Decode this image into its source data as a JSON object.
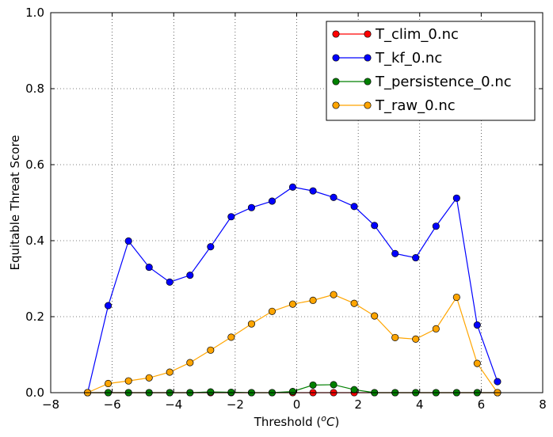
{
  "chart_data": {
    "type": "line",
    "xlabel_main": "Threshold (",
    "xlabel_unit": "o",
    "xlabel_c": "C",
    "xlabel_end": ")",
    "ylabel": "Equitable Threat Score",
    "xlim": [
      -8,
      8
    ],
    "ylim": [
      0,
      1.0
    ],
    "xticks": [
      -8,
      -6,
      -4,
      -2,
      0,
      2,
      4,
      6,
      8
    ],
    "xtick_labels": [
      "−8",
      "−6",
      "−4",
      "−2",
      "0",
      "2",
      "4",
      "6",
      "8"
    ],
    "yticks": [
      0,
      0.2,
      0.4,
      0.6,
      0.8,
      1.0
    ],
    "ytick_labels": [
      "0.0",
      "0.2",
      "0.4",
      "0.6",
      "0.8",
      "1.0"
    ],
    "grid": true,
    "legend_position": "top-right",
    "x": [
      -6.8,
      -6.13,
      -5.47,
      -4.8,
      -4.13,
      -3.47,
      -2.8,
      -2.13,
      -1.47,
      -0.8,
      -0.13,
      0.53,
      1.2,
      1.87,
      2.53,
      3.2,
      3.87,
      4.53,
      5.2,
      5.87,
      6.53
    ],
    "series": [
      {
        "name": "T_clim_0.nc",
        "color": "#ff0000",
        "values": [
          0,
          0,
          0,
          0,
          0,
          0,
          0,
          0,
          0,
          0,
          0,
          0,
          0,
          0,
          0,
          0,
          0,
          0,
          0,
          0,
          0
        ]
      },
      {
        "name": "T_kf_0.nc",
        "color": "#0000ff",
        "values": [
          0,
          0.229,
          0.399,
          0.33,
          0.291,
          0.309,
          0.384,
          0.463,
          0.487,
          0.504,
          0.541,
          0.531,
          0.514,
          0.49,
          0.44,
          0.366,
          0.355,
          0.438,
          0.512,
          0.178,
          0.029
        ]
      },
      {
        "name": "T_persistence_0.nc",
        "color": "#008000",
        "values": [
          0,
          0,
          0,
          0,
          0,
          0,
          0.002,
          0.001,
          0,
          0,
          0.003,
          0.02,
          0.021,
          0.008,
          0,
          0,
          0,
          0,
          0,
          0,
          0
        ]
      },
      {
        "name": "T_raw_0.nc",
        "color": "#ffa500",
        "values": [
          0,
          0.024,
          0.031,
          0.039,
          0.054,
          0.079,
          0.112,
          0.146,
          0.181,
          0.214,
          0.233,
          0.243,
          0.258,
          0.235,
          0.202,
          0.145,
          0.141,
          0.168,
          0.251,
          0.077,
          0
        ]
      }
    ]
  }
}
